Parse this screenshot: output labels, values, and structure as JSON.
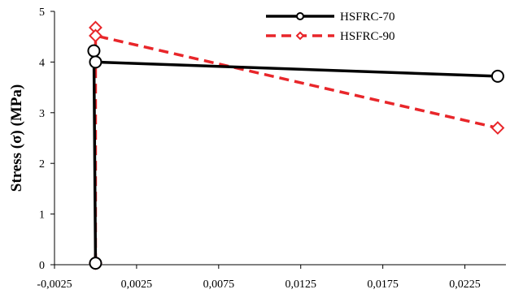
{
  "chart_data": {
    "type": "line",
    "title": "",
    "xlabel": "",
    "ylabel": "Stress (σ) (MPa)",
    "xlim": [
      -0.0025,
      0.025
    ],
    "ylim": [
      0,
      5
    ],
    "x_ticks": [
      "-0,0025",
      "0,0025",
      "0,0075",
      "0,0125",
      "0,0175",
      "0,0225"
    ],
    "x_tick_values": [
      -0.0025,
      0.0025,
      0.0075,
      0.0125,
      0.0175,
      0.0225
    ],
    "y_ticks": [
      "0",
      "1",
      "2",
      "3",
      "4",
      "5"
    ],
    "y_tick_values": [
      0,
      1,
      2,
      3,
      4,
      5
    ],
    "grid": false,
    "legend_position": "top-right",
    "series": [
      {
        "name": "HSFRC-70",
        "color": "#000000",
        "line_style": "solid",
        "marker": "circle",
        "x": [
          0.0,
          -0.0001,
          0.0,
          0.0245
        ],
        "y": [
          0.03,
          4.22,
          4.0,
          3.72
        ]
      },
      {
        "name": "HSFRC-90",
        "color": "#e8262a",
        "line_style": "dashed",
        "marker": "diamond",
        "x": [
          0.0,
          0.0,
          0.0,
          0.0245
        ],
        "y": [
          0.03,
          4.68,
          4.52,
          2.7
        ]
      }
    ]
  }
}
